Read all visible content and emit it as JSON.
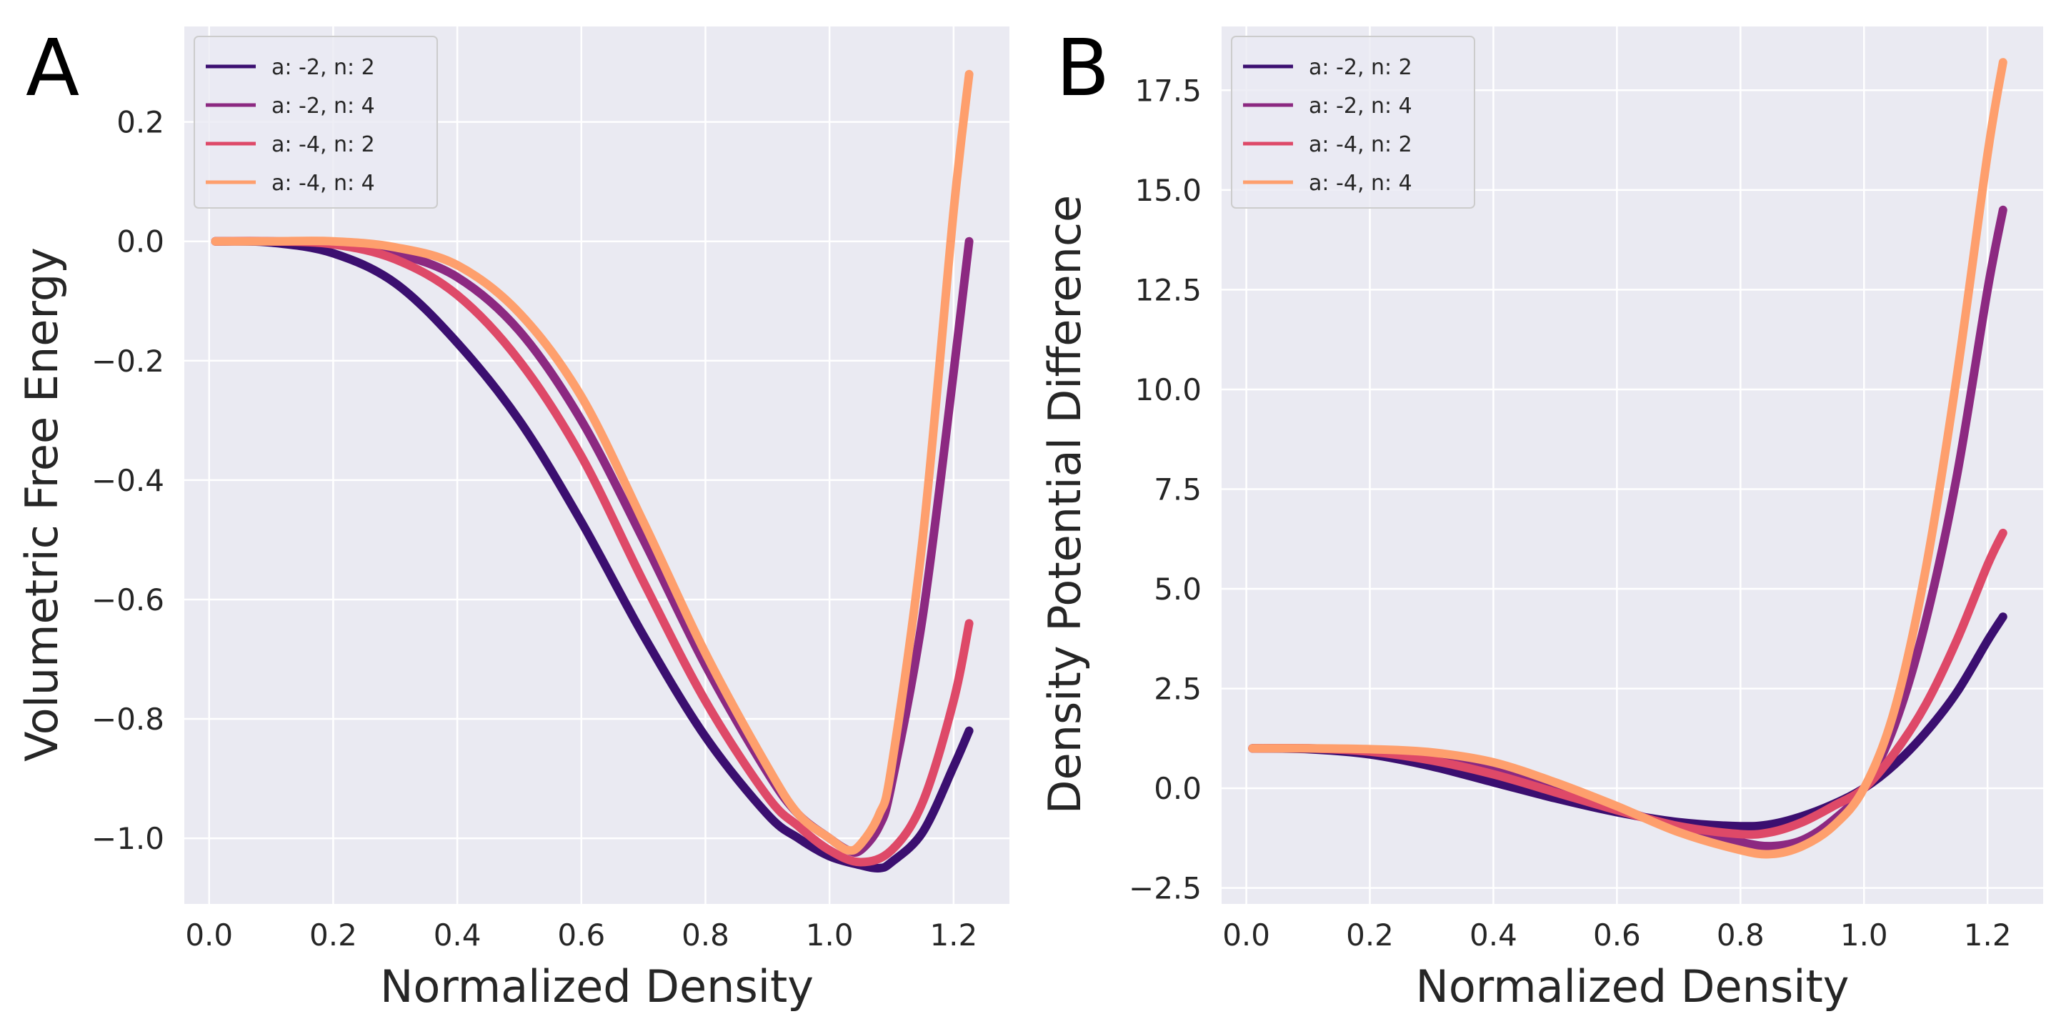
{
  "figure": {
    "style": {
      "plot_bg": "#eaeaf2",
      "grid": "#ffffff",
      "text": "#262626"
    }
  },
  "chart_data": [
    {
      "type": "line",
      "panel_label": "A",
      "title": "",
      "xlabel": "Normalized Density",
      "ylabel": "Volumetric Free Energy",
      "xlim": [
        -0.04,
        1.29
      ],
      "ylim": [
        -1.11,
        0.36
      ],
      "xticks": [
        0.0,
        0.2,
        0.4,
        0.6,
        0.8,
        1.0,
        1.2
      ],
      "xtick_labels": [
        "0.0",
        "0.2",
        "0.4",
        "0.6",
        "0.8",
        "1.0",
        "1.2"
      ],
      "yticks": [
        0.2,
        0.0,
        -0.2,
        -0.4,
        -0.6,
        -0.8,
        -1.0
      ],
      "ytick_labels": [
        "0.2",
        "0.0",
        "−0.2",
        "−0.4",
        "−0.6",
        "−0.8",
        "−1.0"
      ],
      "grid": true,
      "legend_position": "top-left",
      "series": [
        {
          "name": "a: -2, n: 2",
          "color": "#3b0f70",
          "x": [
            0.01,
            0.1,
            0.2,
            0.3,
            0.4,
            0.5,
            0.6,
            0.7,
            0.8,
            0.9,
            0.95,
            1.0,
            1.05,
            1.08,
            1.1,
            1.15,
            1.2,
            1.225
          ],
          "y": [
            0.0,
            -0.002,
            -0.02,
            -0.07,
            -0.17,
            -0.3,
            -0.47,
            -0.66,
            -0.83,
            -0.96,
            -1.0,
            -1.03,
            -1.045,
            -1.05,
            -1.04,
            -0.99,
            -0.88,
            -0.82
          ]
        },
        {
          "name": "a: -2, n: 4",
          "color": "#8c2981",
          "x": [
            0.01,
            0.1,
            0.2,
            0.3,
            0.4,
            0.5,
            0.6,
            0.7,
            0.8,
            0.9,
            0.95,
            1.0,
            1.03,
            1.05,
            1.08,
            1.1,
            1.15,
            1.2,
            1.225
          ],
          "y": [
            0.0,
            0.0,
            -0.003,
            -0.02,
            -0.06,
            -0.15,
            -0.3,
            -0.5,
            -0.71,
            -0.89,
            -0.96,
            -1.0,
            -1.02,
            -1.02,
            -0.98,
            -0.91,
            -0.63,
            -0.22,
            0.0
          ]
        },
        {
          "name": "a: -4, n: 2",
          "color": "#de4968",
          "x": [
            0.01,
            0.1,
            0.2,
            0.3,
            0.4,
            0.5,
            0.6,
            0.7,
            0.8,
            0.9,
            0.95,
            1.0,
            1.05,
            1.1,
            1.15,
            1.2,
            1.225
          ],
          "y": [
            0.0,
            0.0,
            -0.005,
            -0.03,
            -0.09,
            -0.2,
            -0.36,
            -0.57,
            -0.77,
            -0.93,
            -0.98,
            -1.02,
            -1.04,
            -1.02,
            -0.94,
            -0.77,
            -0.64
          ]
        },
        {
          "name": "a: -4, n: 4",
          "color": "#fe9f6d",
          "x": [
            0.01,
            0.1,
            0.2,
            0.3,
            0.4,
            0.5,
            0.6,
            0.7,
            0.8,
            0.9,
            0.95,
            1.0,
            1.03,
            1.05,
            1.08,
            1.1,
            1.15,
            1.2,
            1.225
          ],
          "y": [
            0.0,
            0.0,
            0.0,
            -0.01,
            -0.04,
            -0.12,
            -0.26,
            -0.47,
            -0.69,
            -0.88,
            -0.96,
            -1.0,
            -1.02,
            -1.01,
            -0.96,
            -0.88,
            -0.5,
            0.05,
            0.28
          ]
        }
      ]
    },
    {
      "type": "line",
      "panel_label": "B",
      "title": "",
      "xlabel": "Normalized Density",
      "ylabel": "Density Potential Difference",
      "xlim": [
        -0.04,
        1.29
      ],
      "ylim": [
        -2.9,
        19.1
      ],
      "xticks": [
        0.0,
        0.2,
        0.4,
        0.6,
        0.8,
        1.0,
        1.2
      ],
      "xtick_labels": [
        "0.0",
        "0.2",
        "0.4",
        "0.6",
        "0.8",
        "1.0",
        "1.2"
      ],
      "yticks": [
        17.5,
        15.0,
        12.5,
        10.0,
        7.5,
        5.0,
        2.5,
        0.0,
        -2.5
      ],
      "ytick_labels": [
        "17.5",
        "15.0",
        "12.5",
        "10.0",
        "7.5",
        "5.0",
        "2.5",
        "0.0",
        "−2.5"
      ],
      "grid": true,
      "legend_position": "top-left",
      "series": [
        {
          "name": "a: -2, n: 2",
          "color": "#3b0f70",
          "x": [
            0.01,
            0.1,
            0.2,
            0.3,
            0.4,
            0.5,
            0.6,
            0.7,
            0.8,
            0.85,
            0.9,
            0.95,
            1.0,
            1.05,
            1.1,
            1.15,
            1.2,
            1.225
          ],
          "y": [
            1.0,
            0.98,
            0.85,
            0.55,
            0.15,
            -0.25,
            -0.6,
            -0.85,
            -0.95,
            -0.9,
            -0.7,
            -0.4,
            0.0,
            0.6,
            1.4,
            2.4,
            3.7,
            4.3
          ]
        },
        {
          "name": "a: -2, n: 4",
          "color": "#8c2981",
          "x": [
            0.01,
            0.1,
            0.2,
            0.3,
            0.4,
            0.5,
            0.6,
            0.7,
            0.8,
            0.85,
            0.9,
            0.95,
            1.0,
            1.05,
            1.1,
            1.15,
            1.2,
            1.225
          ],
          "y": [
            1.0,
            1.0,
            0.95,
            0.8,
            0.5,
            0.0,
            -0.5,
            -1.0,
            -1.35,
            -1.45,
            -1.3,
            -0.8,
            0.0,
            1.6,
            4.2,
            7.8,
            12.5,
            14.5
          ]
        },
        {
          "name": "a: -4, n: 2",
          "color": "#de4968",
          "x": [
            0.01,
            0.1,
            0.2,
            0.3,
            0.4,
            0.5,
            0.6,
            0.7,
            0.8,
            0.85,
            0.9,
            0.95,
            1.0,
            1.05,
            1.1,
            1.15,
            1.2,
            1.225
          ],
          "y": [
            1.0,
            1.0,
            0.92,
            0.7,
            0.35,
            -0.1,
            -0.55,
            -0.95,
            -1.15,
            -1.1,
            -0.85,
            -0.45,
            0.0,
            0.9,
            2.1,
            3.7,
            5.6,
            6.4
          ]
        },
        {
          "name": "a: -4, n: 4",
          "color": "#fe9f6d",
          "x": [
            0.01,
            0.1,
            0.2,
            0.3,
            0.4,
            0.5,
            0.6,
            0.7,
            0.8,
            0.85,
            0.9,
            0.95,
            1.0,
            1.05,
            1.1,
            1.15,
            1.2,
            1.225
          ],
          "y": [
            1.0,
            1.0,
            0.98,
            0.9,
            0.65,
            0.15,
            -0.45,
            -1.1,
            -1.55,
            -1.65,
            -1.45,
            -0.95,
            0.0,
            2.0,
            5.5,
            10.3,
            15.9,
            18.2
          ]
        }
      ]
    }
  ]
}
